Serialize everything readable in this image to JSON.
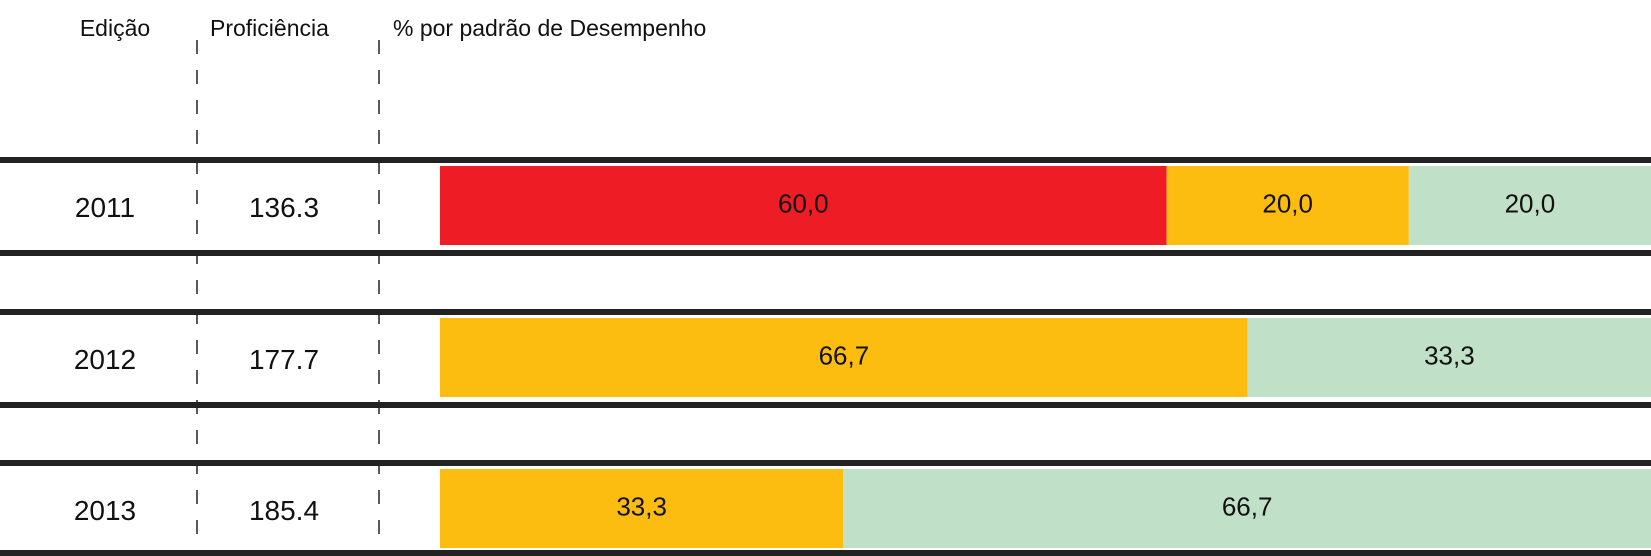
{
  "chart_data": {
    "type": "stacked_bar_table",
    "headers": [
      "Edição",
      "Proficiência",
      "% por padrão de Desempenho"
    ],
    "categories": [
      "2011",
      "2012",
      "2013"
    ],
    "proficiencia": [
      136.3,
      177.7,
      185.4
    ],
    "series": [
      {
        "color": "#ee1c25",
        "values": [
          60.0,
          null,
          null
        ],
        "value_labels": [
          "60,0",
          null,
          null
        ]
      },
      {
        "color": "#fdbd10",
        "values": [
          20.0,
          66.7,
          33.3
        ],
        "value_labels": [
          "20,0",
          "66,7",
          "33,3"
        ]
      },
      {
        "color": "#c1e0c8",
        "values": [
          20.0,
          33.3,
          66.7
        ],
        "value_labels": [
          "20,0",
          "33,3",
          "66,7"
        ]
      }
    ]
  }
}
